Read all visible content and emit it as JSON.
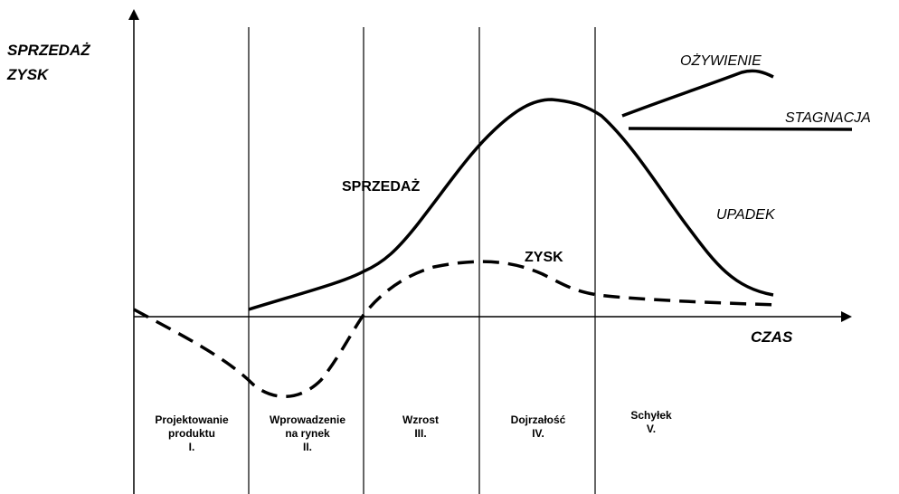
{
  "axes": {
    "y_label": [
      "SPRZEDAŻ",
      "ZYSK"
    ],
    "x_label": "CZAS"
  },
  "curves": {
    "sales": "SPRZEDAŻ",
    "profit": "ZYSK",
    "revival": "OŻYWIENIE",
    "stagnation": "STAGNACJA",
    "decline": "UPADEK"
  },
  "phases": [
    [
      "Projektowanie",
      "produktu",
      "I."
    ],
    [
      "Wprowadzenie",
      "na rynek",
      "II."
    ],
    [
      "Wzrost",
      "III."
    ],
    [
      "Dojrzałość",
      "IV."
    ],
    [
      "Schyłek",
      "V."
    ]
  ]
}
